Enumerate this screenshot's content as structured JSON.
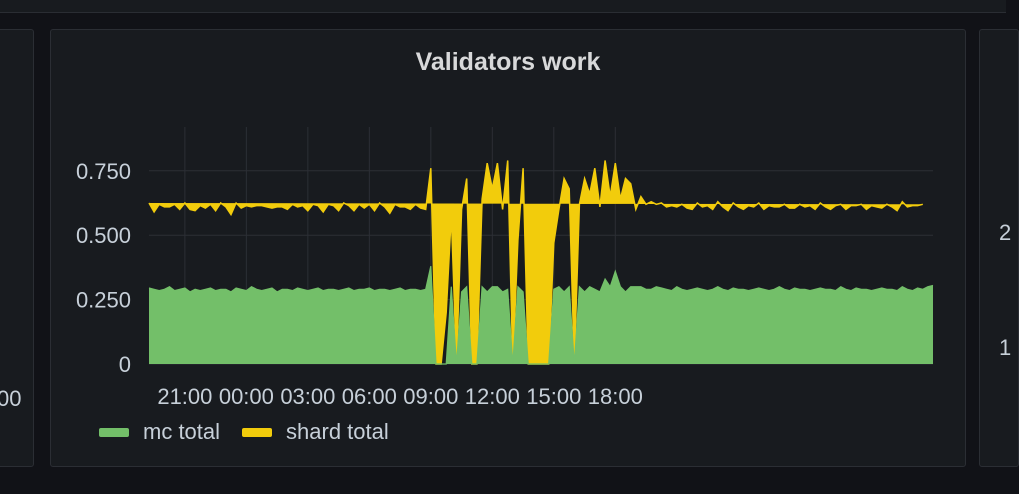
{
  "colors": {
    "background": "#111217",
    "panel": "#181b1f",
    "grid": "#2c2f35",
    "mc": "#73bf69",
    "shard": "#f2cc0c",
    "text": "#c7d0d9"
  },
  "left_panel": {
    "axis_fragment": "00"
  },
  "right_panel": {
    "tick_fragments": [
      "2",
      "1"
    ]
  },
  "chart_data": {
    "type": "area",
    "title": "Validators work",
    "xlabel": "",
    "ylabel": "",
    "x_ticks": [
      "21:00",
      "00:00",
      "03:00",
      "06:00",
      "09:00",
      "12:00",
      "15:00",
      "18:00"
    ],
    "y_ticks": [
      "0",
      "0.250",
      "0.500",
      "0.750"
    ],
    "ylim": [
      0,
      0.92
    ],
    "stacked": true,
    "grid": true,
    "legend_position": "bottom-left",
    "x_start": "19:15",
    "x_end": "19:15 (+1 day)",
    "sample_interval_minutes": 15,
    "series": [
      {
        "name": "mc total",
        "color": "#73bf69",
        "values": [
          0.295,
          0.29,
          0.285,
          0.29,
          0.3,
          0.285,
          0.29,
          0.295,
          0.28,
          0.29,
          0.285,
          0.29,
          0.295,
          0.285,
          0.29,
          0.29,
          0.28,
          0.295,
          0.29,
          0.285,
          0.3,
          0.29,
          0.285,
          0.29,
          0.295,
          0.28,
          0.29,
          0.29,
          0.285,
          0.295,
          0.29,
          0.285,
          0.29,
          0.295,
          0.285,
          0.29,
          0.29,
          0.285,
          0.29,
          0.295,
          0.285,
          0.29,
          0.29,
          0.295,
          0.285,
          0.29,
          0.29,
          0.285,
          0.29,
          0.295,
          0.285,
          0.29,
          0.29,
          0.285,
          0.29,
          0.38,
          0,
          0,
          0.0,
          0.3,
          0,
          0.28,
          0.3,
          0,
          0,
          0.3,
          0.28,
          0.3,
          0.3,
          0.28,
          0.29,
          0,
          0.3,
          0.28,
          0,
          0,
          0,
          0,
          0,
          0.29,
          0.3,
          0.28,
          0.3,
          0,
          0.3,
          0.28,
          0.3,
          0.29,
          0.28,
          0.33,
          0.3,
          0.36,
          0.3,
          0.28,
          0.3,
          0.3,
          0.3,
          0.29,
          0.29,
          0.3,
          0.295,
          0.29,
          0.285,
          0.3,
          0.29,
          0.285,
          0.29,
          0.295,
          0.29,
          0.285,
          0.29,
          0.3,
          0.29,
          0.285,
          0.295,
          0.29,
          0.29,
          0.285,
          0.29,
          0.295,
          0.29,
          0.285,
          0.29,
          0.3,
          0.29,
          0.285,
          0.295,
          0.29,
          0.29,
          0.285,
          0.29,
          0.295,
          0.29,
          0.29,
          0.285,
          0.3,
          0.29,
          0.285,
          0.295,
          0.29,
          0.29,
          0.285,
          0.29,
          0.295,
          0.29,
          0.29,
          0.285,
          0.3,
          0.29,
          0.285,
          0.295,
          0.29,
          0.3,
          0.305
        ]
      },
      {
        "name": "shard total",
        "color": "#f2cc0c",
        "values": [
          0.33,
          0.3,
          0.335,
          0.32,
          0.31,
          0.335,
          0.31,
          0.33,
          0.32,
          0.305,
          0.33,
          0.315,
          0.325,
          0.31,
          0.335,
          0.32,
          0.3,
          0.33,
          0.315,
          0.33,
          0.31,
          0.325,
          0.33,
          0.32,
          0.31,
          0.33,
          0.32,
          0.31,
          0.335,
          0.315,
          0.325,
          0.31,
          0.33,
          0.32,
          0.305,
          0.33,
          0.325,
          0.31,
          0.335,
          0.32,
          0.31,
          0.33,
          0.315,
          0.325,
          0.31,
          0.335,
          0.32,
          0.3,
          0.33,
          0.315,
          0.325,
          0.31,
          0.33,
          0.32,
          0.31,
          0.38,
          0,
          0,
          0.2,
          0.28,
          0,
          0.32,
          0.42,
          0,
          0,
          0.34,
          0.5,
          0.38,
          0.48,
          0.32,
          0.5,
          0,
          0.18,
          0.48,
          0,
          0,
          0,
          0,
          0,
          0.18,
          0.3,
          0.44,
          0.38,
          0,
          0.32,
          0.44,
          0.36,
          0.47,
          0.33,
          0.46,
          0.35,
          0.42,
          0.34,
          0.44,
          0.4,
          0.3,
          0.35,
          0.33,
          0.34,
          0.32,
          0.33,
          0.32,
          0.33,
          0.31,
          0.33,
          0.32,
          0.31,
          0.33,
          0.32,
          0.33,
          0.31,
          0.33,
          0.32,
          0.31,
          0.33,
          0.32,
          0.31,
          0.33,
          0.32,
          0.33,
          0.31,
          0.33,
          0.32,
          0.31,
          0.33,
          0.32,
          0.31,
          0.33,
          0.32,
          0.33,
          0.31,
          0.33,
          0.32,
          0.31,
          0.33,
          0.32,
          0.31,
          0.33,
          0.32,
          0.33,
          0.31,
          0.33,
          0.32,
          0.31,
          0.33,
          0.32,
          0.31,
          0.33,
          0.32,
          0.33,
          0.32,
          0.33
        ]
      }
    ]
  }
}
